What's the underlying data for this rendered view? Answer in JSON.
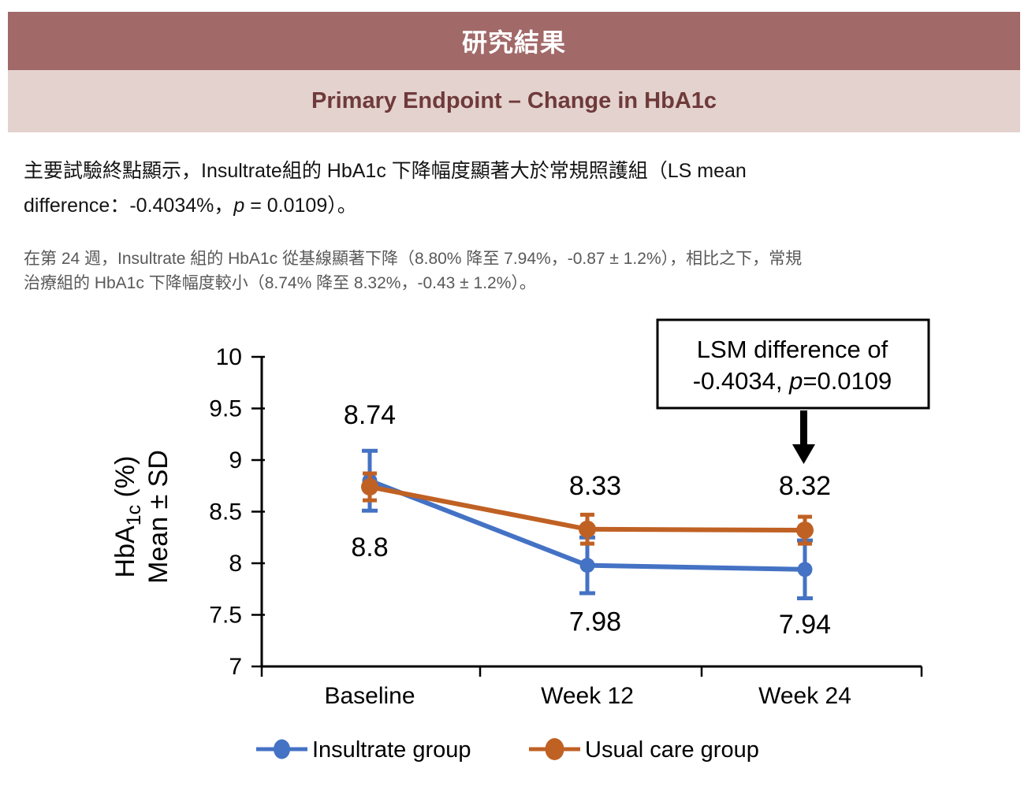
{
  "header": {
    "banner": "研究結果",
    "subtitle": "Primary Endpoint – Change in HbA1c"
  },
  "paragraph1": {
    "line1": "主要試驗終點顯示，Insultrate組的 HbA1c 下降幅度顯著大於常規照護組（LS mean",
    "line2_pre": "difference：-0.4034%，",
    "p": "p",
    "line2_post": " = 0.0109）。"
  },
  "paragraph2": {
    "line1": "在第 24 週，Insultrate 組的 HbA1c 從基線顯著下降（8.80% 降至 7.94%，-0.87 ± 1.2%），相比之下，常規",
    "line2": "治療組的 HbA1c 下降幅度較小（8.74% 降至 8.32%，-0.43 ± 1.2%）。"
  },
  "chart_data": {
    "type": "line",
    "categories": [
      "Baseline",
      "Week 12",
      "Week 24"
    ],
    "series": [
      {
        "name": "Insultrate group",
        "color": "#4472C4",
        "label_color": "#2E75C6",
        "values": [
          8.8,
          7.98,
          7.94
        ],
        "labels": [
          "8.8",
          "7.98",
          "7.94"
        ],
        "error_sd": [
          0.29,
          0.27,
          0.28
        ],
        "label_side": "below",
        "label_dy": [
          96,
          83,
          81
        ]
      },
      {
        "name": "Usual care group",
        "color": "#C06124",
        "label_color": "#C94F2B",
        "values": [
          8.74,
          8.33,
          8.32
        ],
        "labels": [
          "8.74",
          "8.33",
          "8.32"
        ],
        "error_sd": [
          0.13,
          0.14,
          0.13
        ],
        "label_side": "above",
        "label_dy": [
          -80,
          -44,
          -45
        ]
      }
    ],
    "ylabel_line1_pre": "HbA",
    "ylabel_line1_sub": "1c",
    "ylabel_line1_post": " (%)",
    "ylabel_line2": "Mean ± SD",
    "ylim": [
      7,
      10
    ],
    "yticks": [
      "7",
      "7.5",
      "8",
      "8.5",
      "9",
      "9.5",
      "10"
    ],
    "grid": false,
    "legend_position": "bottom",
    "annotation": {
      "line1": "LSM difference of",
      "line2_pre": "-0.4034, ",
      "line2_p": "p",
      "line2_post": "=0.0109",
      "arrow": "down",
      "target": "Week 24"
    }
  }
}
